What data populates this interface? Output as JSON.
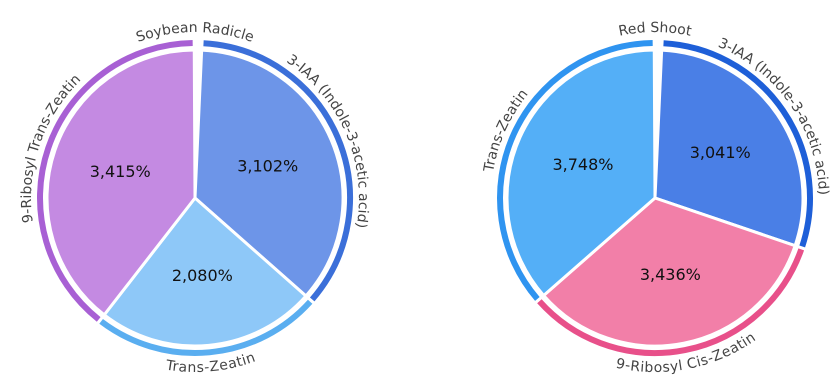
{
  "chart_data": [
    {
      "type": "pie",
      "title": "Soybean Radicle",
      "categories": [
        "3-IAA (Indole-3-acetic acid)",
        "Trans-Zeatin",
        "9-Ribosyl Trans-Zeatin"
      ],
      "values": [
        3.102,
        2.08,
        3.415
      ],
      "value_labels": [
        "3,102%",
        "2,080%",
        "3,415%"
      ],
      "colors": [
        "#6d95e8",
        "#8ec8f8",
        "#c48ae2"
      ],
      "ring_colors": [
        "#3b6fd9",
        "#5aaef0",
        "#a860d4"
      ]
    },
    {
      "type": "pie",
      "title": "Red Shoot",
      "categories": [
        "3-IAA (Indole-3-acetic acid)",
        "9-Ribosyl Cis-Zeatin",
        "Trans-Zeatin"
      ],
      "values": [
        3.041,
        3.436,
        3.748
      ],
      "value_labels": [
        "3,041%",
        "3,436%",
        "3,748%"
      ],
      "colors": [
        "#4a7fe6",
        "#f27fa8",
        "#54aff7"
      ],
      "ring_colors": [
        "#1e5fd8",
        "#e8508a",
        "#2f94f0"
      ]
    }
  ]
}
